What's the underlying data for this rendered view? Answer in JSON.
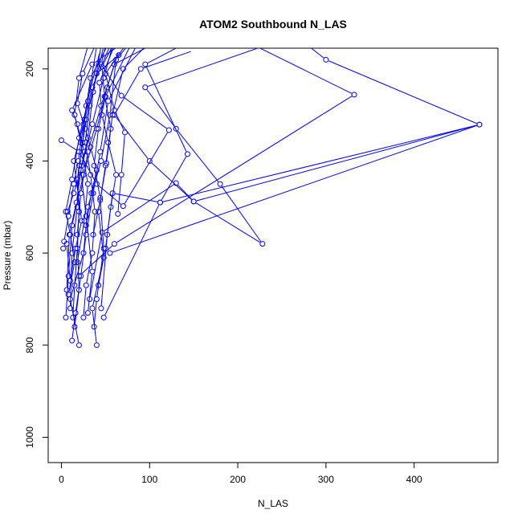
{
  "chart_data": {
    "type": "scatter",
    "title": "ATOM2 Southbound N_LAS",
    "xlabel": "N_LAS",
    "ylabel": "Pressure (mbar)",
    "xlim": [
      -15,
      495
    ],
    "ylim": [
      1055,
      155
    ],
    "y_reversed": true,
    "x_ticks": [
      0,
      100,
      200,
      300,
      400
    ],
    "y_ticks": [
      200,
      400,
      600,
      800,
      1000
    ],
    "grid": false,
    "series_color": "#0000ff",
    "series": [
      {
        "points": [
          [
            20,
            800
          ],
          [
            10,
            700
          ],
          [
            25,
            600
          ],
          [
            30,
            500
          ],
          [
            45,
            400
          ],
          [
            55,
            300
          ],
          [
            62,
            180
          ],
          [
            75,
            150
          ]
        ]
      },
      {
        "points": [
          [
            40,
            800
          ],
          [
            35,
            720
          ],
          [
            48,
            610
          ],
          [
            42,
            510
          ],
          [
            50,
            410
          ],
          [
            58,
            300
          ],
          [
            70,
            200
          ],
          [
            96,
            150
          ]
        ]
      },
      {
        "points": [
          [
            15,
            760
          ],
          [
            20,
            680
          ],
          [
            18,
            560
          ],
          [
            22,
            470
          ],
          [
            30,
            380
          ],
          [
            45,
            280
          ],
          [
            60,
            190
          ],
          [
            100,
            150
          ]
        ]
      },
      {
        "points": [
          [
            5,
            740
          ],
          [
            8,
            650
          ],
          [
            12,
            540
          ],
          [
            25,
            430
          ],
          [
            40,
            330
          ],
          [
            52,
            240
          ],
          [
            65,
            160
          ]
        ]
      },
      {
        "points": [
          [
            30,
            730
          ],
          [
            35,
            640
          ],
          [
            28,
            520
          ],
          [
            22,
            420
          ],
          [
            35,
            320
          ],
          [
            48,
            220
          ],
          [
            58,
            150
          ]
        ]
      },
      {
        "points": [
          [
            10,
            720
          ],
          [
            12,
            600
          ],
          [
            18,
            500
          ],
          [
            20,
            410
          ],
          [
            28,
            310
          ],
          [
            40,
            210
          ],
          [
            65,
            170
          ]
        ]
      },
      {
        "points": [
          [
            45,
            720
          ],
          [
            52,
            560
          ],
          [
            58,
            470
          ],
          [
            112,
            490
          ],
          [
            143,
            385
          ],
          [
            95,
            190
          ],
          [
            135,
            150
          ]
        ]
      },
      {
        "points": [
          [
            48,
            740
          ],
          [
            112,
            490
          ],
          [
            474,
            321
          ],
          [
            150,
            488
          ],
          [
            228,
            580
          ],
          [
            180,
            450
          ],
          [
            130,
            330
          ],
          [
            95,
            240
          ],
          [
            230,
            150
          ]
        ]
      },
      {
        "points": [
          [
            32,
            700
          ],
          [
            46,
            555
          ],
          [
            130,
            448
          ],
          [
            150,
            488
          ],
          [
            100,
            400
          ],
          [
            60,
            300
          ],
          [
            90,
            200
          ],
          [
            150,
            160
          ]
        ]
      },
      {
        "points": [
          [
            55,
            600
          ],
          [
            474,
            321
          ],
          [
            300,
            180
          ],
          [
            280,
            150
          ]
        ]
      },
      {
        "points": [
          [
            20,
            650
          ],
          [
            60,
            580
          ],
          [
            332,
            256
          ],
          [
            220,
            150
          ],
          [
            160,
            150
          ]
        ]
      },
      {
        "points": [
          [
            0,
            355
          ],
          [
            20,
            380
          ],
          [
            40,
            450
          ],
          [
            70,
            498
          ],
          [
            122,
            333
          ],
          [
            68,
            258
          ],
          [
            45,
            190
          ],
          [
            50,
            150
          ]
        ]
      },
      {
        "points": [
          [
            8,
            690
          ],
          [
            15,
            620
          ],
          [
            10,
            560
          ],
          [
            5,
            510
          ],
          [
            12,
            440
          ],
          [
            20,
            350
          ],
          [
            30,
            270
          ],
          [
            40,
            150
          ]
        ]
      },
      {
        "points": [
          [
            2,
            590
          ],
          [
            6,
            580
          ],
          [
            10,
            660
          ],
          [
            16,
            590
          ],
          [
            23,
            530
          ],
          [
            14,
            400
          ],
          [
            25,
            320
          ],
          [
            35,
            240
          ],
          [
            55,
            150
          ]
        ]
      },
      {
        "points": [
          [
            25,
            740
          ],
          [
            28,
            670
          ],
          [
            35,
            600
          ],
          [
            38,
            510
          ],
          [
            33,
            430
          ],
          [
            27,
            360
          ],
          [
            32,
            280
          ],
          [
            48,
            150
          ]
        ]
      },
      {
        "points": [
          [
            18,
            620
          ],
          [
            26,
            530
          ],
          [
            30,
            450
          ],
          [
            22,
            360
          ],
          [
            15,
            300
          ],
          [
            20,
            220
          ],
          [
            30,
            150
          ]
        ]
      },
      {
        "points": [
          [
            37,
            760
          ],
          [
            40,
            700
          ],
          [
            48,
            590
          ],
          [
            44,
            480
          ],
          [
            37,
            410
          ],
          [
            42,
            330
          ],
          [
            50,
            260
          ],
          [
            78,
            150
          ]
        ]
      },
      {
        "points": [
          [
            13,
            740
          ],
          [
            15,
            670
          ],
          [
            18,
            590
          ],
          [
            20,
            510
          ],
          [
            18,
            440
          ],
          [
            24,
            360
          ],
          [
            28,
            280
          ],
          [
            44,
            160
          ]
        ]
      },
      {
        "points": [
          [
            7,
            510
          ],
          [
            14,
            470
          ],
          [
            22,
            420
          ],
          [
            26,
            380
          ],
          [
            18,
            320
          ],
          [
            12,
            290
          ],
          [
            35,
            190
          ],
          [
            65,
            150
          ]
        ]
      },
      {
        "points": [
          [
            6,
            680
          ],
          [
            9,
            560
          ],
          [
            17,
            490
          ],
          [
            23,
            410
          ],
          [
            30,
            350
          ],
          [
            36,
            250
          ],
          [
            45,
            150
          ]
        ]
      },
      {
        "points": [
          [
            28,
            540
          ],
          [
            34,
            470
          ],
          [
            40,
            420
          ],
          [
            33,
            370
          ],
          [
            27,
            330
          ],
          [
            18,
            275
          ],
          [
            24,
            210
          ],
          [
            38,
            150
          ]
        ]
      },
      {
        "points": [
          [
            42,
            670
          ],
          [
            50,
            590
          ],
          [
            56,
            500
          ],
          [
            62,
            430
          ],
          [
            53,
            360
          ],
          [
            46,
            300
          ],
          [
            43,
            230
          ],
          [
            60,
            150
          ]
        ]
      },
      {
        "points": [
          [
            12,
            790
          ],
          [
            16,
            730
          ],
          [
            22,
            650
          ],
          [
            28,
            560
          ],
          [
            36,
            470
          ],
          [
            44,
            380
          ],
          [
            53,
            270
          ],
          [
            85,
            150
          ]
        ]
      },
      {
        "points": [
          [
            64,
            515
          ],
          [
            68,
            430
          ],
          [
            72,
            338
          ],
          [
            60,
            290
          ],
          [
            50,
            210
          ],
          [
            72,
            150
          ]
        ]
      },
      {
        "points": [
          [
            3,
            575
          ],
          [
            8,
            520
          ],
          [
            14,
            450
          ],
          [
            19,
            400
          ],
          [
            26,
            310
          ],
          [
            33,
            220
          ],
          [
            52,
            150
          ]
        ]
      },
      {
        "points": [
          [
            36,
            560
          ],
          [
            44,
            485
          ],
          [
            51,
            405
          ],
          [
            56,
            330
          ],
          [
            49,
            260
          ],
          [
            46,
            195
          ],
          [
            58,
            150
          ]
        ]
      }
    ]
  }
}
